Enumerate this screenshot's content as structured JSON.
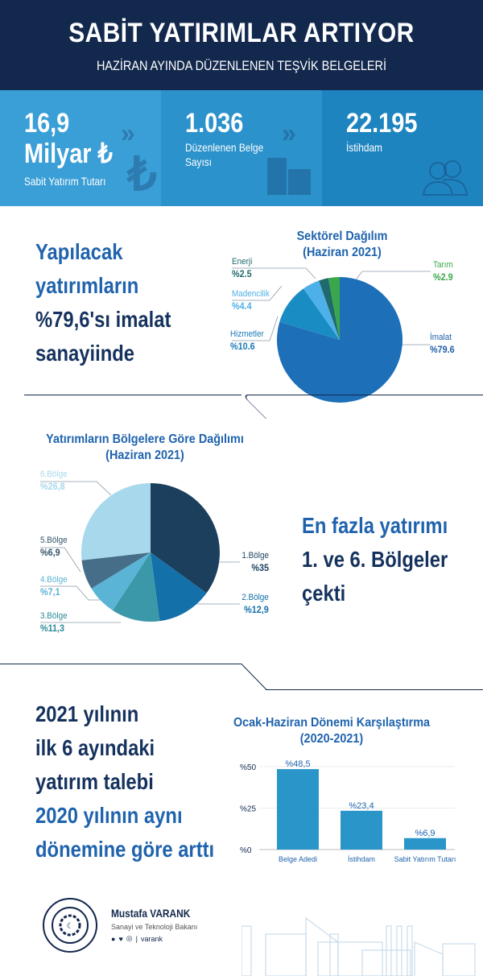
{
  "header": {
    "title": "SABİT YATIRIMLAR ARTIYOR",
    "subtitle": "HAZİRAN AYINDA DÜZENLENEN TEŞVİK BELGELERİ"
  },
  "stats": [
    {
      "value": "16,9",
      "value2": "Milyar ₺",
      "label": "Sabit Yatırım Tutarı",
      "icon": "lira-icon"
    },
    {
      "value": "1.036",
      "label": "Düzenlenen Belge",
      "label2": "Sayısı",
      "icon": "building-icon"
    },
    {
      "value": "22.195",
      "label": "İstihdam",
      "icon": "people-icon"
    }
  ],
  "colors": {
    "navy": "#13284d",
    "blue": "#1f63ad",
    "stat1": "#3a9fd6",
    "stat2": "#2b92cb",
    "stat3": "#1e84bf"
  },
  "section1": {
    "lines": [
      "Yapılacak",
      "yatırımların",
      "%79,6'sı imalat",
      "sanayiinde"
    ]
  },
  "section2": {
    "lines": [
      "En fazla yatırımı",
      "1. ve 6. Bölgeler",
      "çekti"
    ]
  },
  "section3": {
    "lines": [
      "2021 yılının",
      "ilk 6 ayındaki",
      "yatırım talebi",
      "2020 yılının aynı",
      "dönemine göre arttı"
    ]
  },
  "footer": {
    "name": "Mustafa VARANK",
    "role": "Sanayi ve Teknoloji Bakanı",
    "social": "varank",
    "separator": "|"
  },
  "chart_data": [
    {
      "type": "pie",
      "title": "Sektörel Dağılım",
      "subtitle": "(Haziran 2021)",
      "slices": [
        {
          "label": "İmalat",
          "value_label": "%79.6",
          "value": 79.6,
          "color": "#1d6fb8"
        },
        {
          "label": "Hizmetler",
          "value_label": "%10.6",
          "value": 10.6,
          "color": "#1a8cc4"
        },
        {
          "label": "Madencilik",
          "value_label": "%4.4",
          "value": 4.4,
          "color": "#4db0e8"
        },
        {
          "label": "Enerji",
          "value_label": "%2.5",
          "value": 2.5,
          "color": "#1f6a6c"
        },
        {
          "label": "Tarım",
          "value_label": "%2.9",
          "value": 2.9,
          "color": "#3aa84a"
        }
      ]
    },
    {
      "type": "pie",
      "title": "Yatırımların Bölgelere Göre Dağılımı",
      "subtitle": "(Haziran 2021)",
      "slices": [
        {
          "label": "1.Bölge",
          "value_label": "%35",
          "value": 35,
          "color": "#1b3f5c"
        },
        {
          "label": "2.Bölge",
          "value_label": "%12,9",
          "value": 12.9,
          "color": "#1470a8"
        },
        {
          "label": "3.Bölge",
          "value_label": "%11,3",
          "value": 11.3,
          "color": "#3a98a8"
        },
        {
          "label": "4.Bölge",
          "value_label": "%7,1",
          "value": 7.1,
          "color": "#5ab4d6"
        },
        {
          "label": "5.Bölge",
          "value_label": "%6,9",
          "value": 6.9,
          "color": "#466e88"
        },
        {
          "label": "6.Bölge",
          "value_label": "%26,8",
          "value": 26.8,
          "color": "#a8d8ec"
        }
      ]
    },
    {
      "type": "bar",
      "title": "Ocak-Haziran Dönemi Karşılaştırma",
      "subtitle": "(2020-2021)",
      "categories": [
        "Belge Adedi",
        "İstihdam",
        "Sabit Yatırım Tutarı"
      ],
      "values": [
        48.5,
        23.4,
        6.9
      ],
      "value_labels": [
        "%48,5",
        "%23,4",
        "%6,9"
      ],
      "yticks": [
        {
          "v": 0,
          "label": "%0"
        },
        {
          "v": 25,
          "label": "%25"
        },
        {
          "v": 50,
          "label": "%50"
        }
      ],
      "ylim": [
        0,
        50
      ],
      "bar_color": "#2a95c9",
      "grid": true
    }
  ]
}
